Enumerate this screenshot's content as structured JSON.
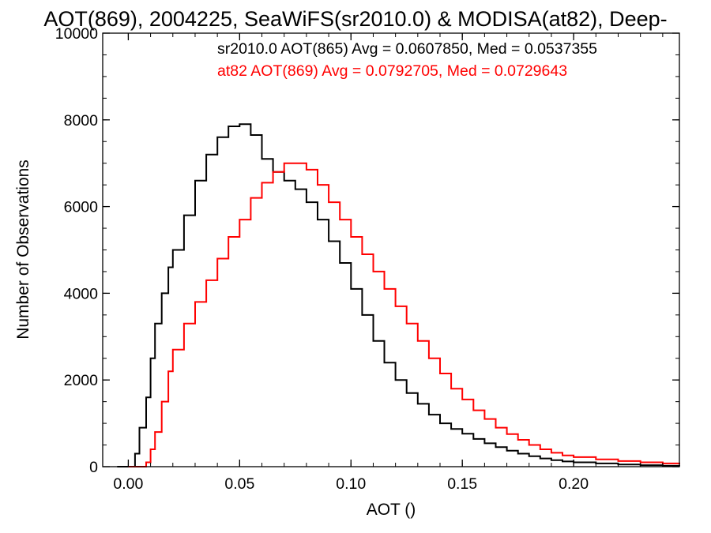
{
  "chart_data": {
    "type": "line",
    "title": "AOT(869), 2004225, SeaWiFS(sr2010.0) & MODISA(at82), Deep-",
    "xlabel": "AOT ()",
    "ylabel": "Number of Observations",
    "xlim": [
      -0.0115,
      0.2475
    ],
    "ylim": [
      0,
      10000
    ],
    "x_ticks": [
      0.0,
      0.05,
      0.1,
      0.15,
      0.2
    ],
    "x_tick_labels": [
      "0.00",
      "0.05",
      "0.10",
      "0.15",
      "0.20"
    ],
    "y_ticks": [
      0,
      2000,
      4000,
      6000,
      8000,
      10000
    ],
    "y_tick_labels": [
      "0",
      "2000",
      "4000",
      "6000",
      "8000",
      "10000"
    ],
    "step": true,
    "annotations": [
      {
        "text": "sr2010.0 AOT(865) Avg = 0.0607850, Med = 0.0537355",
        "color": "#000000"
      },
      {
        "text": "at82 AOT(869) Avg = 0.0792705, Med = 0.0729643",
        "color": "#ff0000"
      }
    ],
    "series": [
      {
        "color": "#000000",
        "points": [
          [
            -0.005,
            0
          ],
          [
            0.0,
            0
          ],
          [
            0.003,
            300
          ],
          [
            0.005,
            900
          ],
          [
            0.008,
            1600
          ],
          [
            0.01,
            2500
          ],
          [
            0.012,
            3300
          ],
          [
            0.015,
            4000
          ],
          [
            0.018,
            4600
          ],
          [
            0.02,
            5000
          ],
          [
            0.025,
            5800
          ],
          [
            0.03,
            6600
          ],
          [
            0.035,
            7200
          ],
          [
            0.04,
            7600
          ],
          [
            0.045,
            7850
          ],
          [
            0.05,
            7900
          ],
          [
            0.055,
            7650
          ],
          [
            0.06,
            7100
          ],
          [
            0.065,
            6800
          ],
          [
            0.07,
            6600
          ],
          [
            0.075,
            6400
          ],
          [
            0.08,
            6100
          ],
          [
            0.085,
            5700
          ],
          [
            0.09,
            5200
          ],
          [
            0.095,
            4700
          ],
          [
            0.1,
            4100
          ],
          [
            0.105,
            3500
          ],
          [
            0.11,
            2900
          ],
          [
            0.115,
            2400
          ],
          [
            0.12,
            2000
          ],
          [
            0.125,
            1700
          ],
          [
            0.13,
            1450
          ],
          [
            0.135,
            1200
          ],
          [
            0.14,
            1000
          ],
          [
            0.145,
            870
          ],
          [
            0.15,
            760
          ],
          [
            0.155,
            640
          ],
          [
            0.16,
            540
          ],
          [
            0.165,
            450
          ],
          [
            0.17,
            370
          ],
          [
            0.175,
            300
          ],
          [
            0.18,
            240
          ],
          [
            0.185,
            190
          ],
          [
            0.19,
            150
          ],
          [
            0.195,
            120
          ],
          [
            0.2,
            100
          ],
          [
            0.21,
            75
          ],
          [
            0.22,
            50
          ],
          [
            0.23,
            35
          ],
          [
            0.24,
            20
          ],
          [
            0.2475,
            10
          ]
        ]
      },
      {
        "color": "#ff0000",
        "points": [
          [
            0.0,
            0
          ],
          [
            0.005,
            0
          ],
          [
            0.008,
            100
          ],
          [
            0.01,
            400
          ],
          [
            0.012,
            800
          ],
          [
            0.015,
            1500
          ],
          [
            0.018,
            2200
          ],
          [
            0.02,
            2700
          ],
          [
            0.025,
            3300
          ],
          [
            0.03,
            3800
          ],
          [
            0.035,
            4300
          ],
          [
            0.04,
            4800
          ],
          [
            0.045,
            5300
          ],
          [
            0.05,
            5700
          ],
          [
            0.055,
            6200
          ],
          [
            0.06,
            6550
          ],
          [
            0.065,
            6800
          ],
          [
            0.07,
            7000
          ],
          [
            0.075,
            7000
          ],
          [
            0.08,
            6850
          ],
          [
            0.085,
            6500
          ],
          [
            0.09,
            6100
          ],
          [
            0.095,
            5700
          ],
          [
            0.1,
            5300
          ],
          [
            0.105,
            4900
          ],
          [
            0.11,
            4500
          ],
          [
            0.115,
            4100
          ],
          [
            0.12,
            3700
          ],
          [
            0.125,
            3300
          ],
          [
            0.13,
            2900
          ],
          [
            0.135,
            2500
          ],
          [
            0.14,
            2150
          ],
          [
            0.145,
            1800
          ],
          [
            0.15,
            1550
          ],
          [
            0.155,
            1300
          ],
          [
            0.16,
            1100
          ],
          [
            0.165,
            900
          ],
          [
            0.17,
            750
          ],
          [
            0.175,
            620
          ],
          [
            0.18,
            500
          ],
          [
            0.185,
            400
          ],
          [
            0.19,
            320
          ],
          [
            0.195,
            260
          ],
          [
            0.2,
            220
          ],
          [
            0.21,
            170
          ],
          [
            0.22,
            130
          ],
          [
            0.23,
            100
          ],
          [
            0.24,
            75
          ],
          [
            0.2475,
            55
          ]
        ]
      }
    ]
  }
}
